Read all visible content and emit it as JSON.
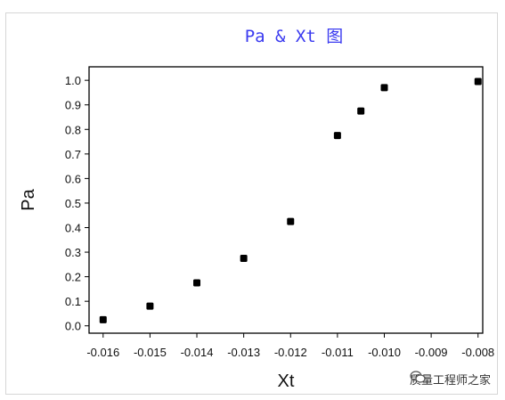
{
  "chart_data": {
    "type": "scatter",
    "title": "Pa & Xt 图",
    "xlabel": "Xt",
    "ylabel": "Pa",
    "xlim": [
      -0.0163,
      -0.0079
    ],
    "ylim": [
      -0.03,
      1.055
    ],
    "xticks": [
      -0.016,
      -0.015,
      -0.014,
      -0.013,
      -0.012,
      -0.011,
      -0.01,
      -0.009,
      -0.008
    ],
    "xtick_labels": [
      "-0.016",
      "-0.015",
      "-0.014",
      "-0.013",
      "-0.012",
      "-0.011",
      "-0.010",
      "-0.009",
      "-0.008"
    ],
    "yticks": [
      0.0,
      0.1,
      0.2,
      0.3,
      0.4,
      0.5,
      0.6,
      0.7,
      0.8,
      0.9,
      1.0
    ],
    "ytick_labels": [
      "0.0",
      "0.1",
      "0.2",
      "0.3",
      "0.4",
      "0.5",
      "0.6",
      "0.7",
      "0.8",
      "0.9",
      "1.0"
    ],
    "grid": false,
    "marker_color": "#000000",
    "title_color": "#3a3af0",
    "points": [
      {
        "x": -0.016,
        "y": 0.025
      },
      {
        "x": -0.015,
        "y": 0.08
      },
      {
        "x": -0.014,
        "y": 0.175
      },
      {
        "x": -0.013,
        "y": 0.275
      },
      {
        "x": -0.012,
        "y": 0.425
      },
      {
        "x": -0.011,
        "y": 0.775
      },
      {
        "x": -0.0105,
        "y": 0.875
      },
      {
        "x": -0.01,
        "y": 0.97
      },
      {
        "x": -0.008,
        "y": 0.995
      }
    ]
  },
  "watermark": {
    "text": "质量工程师之家",
    "icon": "wechat-icon"
  }
}
